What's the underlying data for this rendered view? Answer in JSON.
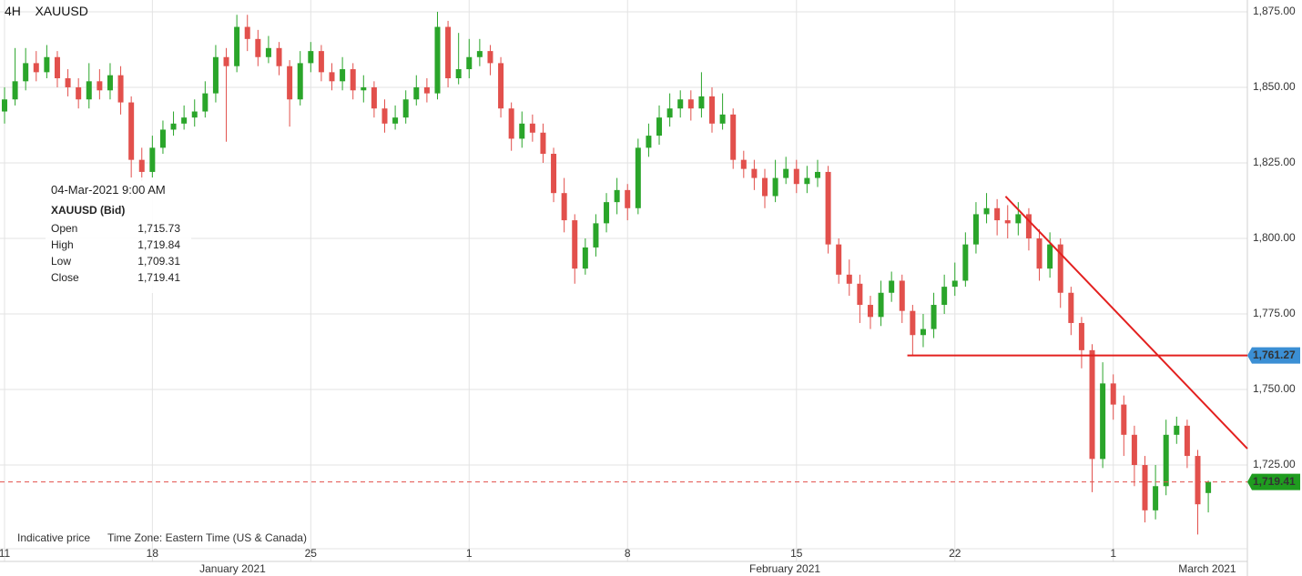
{
  "header": {
    "period": "4H",
    "symbol": "XAUUSD"
  },
  "footer": {
    "note": "Indicative price",
    "timezone": "Time Zone: Eastern Time (US & Canada)"
  },
  "tooltip": {
    "time": "04-Mar-2021 9:00 AM",
    "symbol": "XAUUSD (Bid)",
    "rows": [
      {
        "label": "Open",
        "value": "1,715.73"
      },
      {
        "label": "High",
        "value": "1,719.84"
      },
      {
        "label": "Low",
        "value": "1,709.31"
      },
      {
        "label": "Close",
        "value": "1,719.41"
      }
    ]
  },
  "chart_data": {
    "type": "candlestick",
    "up_color": "#2aa52a",
    "down_color": "#e2504c",
    "grid": true,
    "xlim": [
      -0.43,
      117.7
    ],
    "ylim": [
      1697.3,
      1878.9
    ],
    "xticks": [
      {
        "value": 0,
        "label": "11"
      },
      {
        "value": 14,
        "label": "18"
      },
      {
        "value": 29,
        "label": "25"
      },
      {
        "value": 44,
        "label": "1"
      },
      {
        "value": 59,
        "label": "8"
      },
      {
        "value": 75,
        "label": "15"
      },
      {
        "value": 90,
        "label": "22"
      },
      {
        "value": 105,
        "label": "1"
      }
    ],
    "months": [
      {
        "value": 21.6,
        "label": "January 2021"
      },
      {
        "value": 73.9,
        "label": "February 2021"
      },
      {
        "value": 113.9,
        "label": "March 2021"
      }
    ],
    "yticks": [
      {
        "value": 1725,
        "label": "1,725.00"
      },
      {
        "value": 1750,
        "label": "1,750.00"
      },
      {
        "value": 1775,
        "label": "1,775.00"
      },
      {
        "value": 1800,
        "label": "1,800.00"
      },
      {
        "value": 1825,
        "label": "1,825.00"
      },
      {
        "value": 1850,
        "label": "1,850.00"
      },
      {
        "value": 1875,
        "label": "1,875.00"
      }
    ],
    "x": [
      0,
      1,
      2,
      3,
      4,
      5,
      6,
      7,
      8,
      9,
      10,
      11,
      12,
      13,
      14,
      15,
      16,
      17,
      18,
      19,
      20,
      21,
      22,
      23,
      24,
      25,
      26,
      27,
      28,
      29,
      30,
      31,
      32,
      33,
      34,
      35,
      36,
      37,
      38,
      39,
      40,
      41,
      42,
      43,
      44,
      45,
      46,
      47,
      48,
      49,
      50,
      51,
      52,
      53,
      54,
      55,
      56,
      57,
      58,
      59,
      60,
      61,
      62,
      63,
      64,
      65,
      66,
      67,
      68,
      69,
      70,
      71,
      72,
      73,
      74,
      75,
      76,
      77,
      78,
      79,
      80,
      81,
      82,
      83,
      84,
      85,
      86,
      87,
      88,
      89,
      90,
      91,
      92,
      93,
      94,
      95,
      96,
      97,
      98,
      99,
      100,
      101,
      102,
      103,
      104,
      105,
      106,
      107,
      108,
      109,
      110,
      111,
      112,
      113,
      114
    ],
    "open": [
      1842,
      1846,
      1852,
      1858,
      1855,
      1860,
      1853,
      1850,
      1846,
      1852,
      1849,
      1854,
      1845,
      1826,
      1822,
      1830,
      1836,
      1838,
      1840,
      1842,
      1848,
      1860,
      1857,
      1870,
      1866,
      1860,
      1863,
      1857,
      1846,
      1858,
      1862,
      1855,
      1852,
      1856,
      1849,
      1850,
      1843,
      1838,
      1840,
      1846,
      1850,
      1848,
      1870,
      1853,
      1856,
      1860,
      1862,
      1858,
      1843,
      1833,
      1838,
      1835,
      1828,
      1815,
      1806,
      1790,
      1797,
      1805,
      1812,
      1816,
      1810,
      1830,
      1834,
      1840,
      1843,
      1846,
      1843,
      1847,
      1838,
      1841,
      1826,
      1823,
      1820,
      1814,
      1820,
      1823,
      1818,
      1820,
      1822,
      1798,
      1788,
      1785,
      1778,
      1774,
      1782,
      1786,
      1776,
      1768,
      1770,
      1778,
      1784,
      1786,
      1798,
      1808,
      1810,
      1806,
      1805,
      1808,
      1800,
      1790,
      1798,
      1782,
      1772,
      1763,
      1727,
      1752,
      1745,
      1735,
      1725,
      1710,
      1718,
      1735,
      1738,
      1728,
      1715.73
    ],
    "high": [
      1850,
      1863,
      1863,
      1862,
      1864,
      1862,
      1856,
      1853,
      1858,
      1856,
      1858,
      1857,
      1847,
      1830,
      1834,
      1839,
      1842,
      1844,
      1846,
      1852,
      1864,
      1863,
      1874,
      1874,
      1869,
      1867,
      1865,
      1859,
      1862,
      1865,
      1864,
      1858,
      1860,
      1858,
      1854,
      1852,
      1846,
      1844,
      1849,
      1854,
      1853,
      1875,
      1872,
      1868,
      1866,
      1866,
      1864,
      1860,
      1845,
      1842,
      1841,
      1838,
      1830,
      1820,
      1808,
      1800,
      1808,
      1815,
      1820,
      1818,
      1833,
      1838,
      1844,
      1848,
      1849,
      1849,
      1855,
      1850,
      1848,
      1843,
      1829,
      1826,
      1823,
      1826,
      1827,
      1826,
      1824,
      1826,
      1824,
      1800,
      1793,
      1788,
      1781,
      1786,
      1789,
      1788,
      1778,
      1775,
      1782,
      1788,
      1792,
      1802,
      1812,
      1815,
      1813,
      1811,
      1812,
      1810,
      1803,
      1802,
      1800,
      1784,
      1774,
      1765,
      1759,
      1755,
      1748,
      1738,
      1728,
      1725,
      1740,
      1741,
      1740,
      1730,
      1719.84
    ],
    "low": [
      1838,
      1844,
      1849,
      1852,
      1853,
      1850,
      1847,
      1843,
      1843,
      1846,
      1846,
      1841,
      1820,
      1819,
      1820,
      1828,
      1834,
      1836,
      1837,
      1840,
      1845,
      1832,
      1855,
      1862,
      1857,
      1858,
      1854,
      1837,
      1844,
      1855,
      1852,
      1849,
      1849,
      1846,
      1845,
      1840,
      1835,
      1836,
      1838,
      1844,
      1845,
      1846,
      1850,
      1851,
      1853,
      1857,
      1854,
      1840,
      1829,
      1830,
      1832,
      1825,
      1812,
      1802,
      1785,
      1788,
      1794,
      1802,
      1808,
      1806,
      1808,
      1827,
      1831,
      1837,
      1840,
      1839,
      1840,
      1835,
      1836,
      1823,
      1820,
      1816,
      1810,
      1812,
      1818,
      1815,
      1815,
      1817,
      1795,
      1785,
      1781,
      1772,
      1770,
      1771,
      1779,
      1772,
      1761,
      1764,
      1767,
      1775,
      1781,
      1784,
      1795,
      1805,
      1801,
      1800,
      1801,
      1796,
      1786,
      1787,
      1777,
      1768,
      1757,
      1716,
      1724,
      1740,
      1728,
      1718,
      1706,
      1707,
      1715,
      1732,
      1724,
      1702,
      1709.31
    ],
    "close": [
      1846,
      1852,
      1858,
      1855,
      1860,
      1853,
      1850,
      1846,
      1852,
      1849,
      1854,
      1845,
      1826,
      1822,
      1830,
      1836,
      1838,
      1840,
      1842,
      1848,
      1860,
      1857,
      1870,
      1866,
      1860,
      1863,
      1857,
      1846,
      1858,
      1862,
      1855,
      1852,
      1856,
      1849,
      1850,
      1843,
      1838,
      1840,
      1846,
      1850,
      1848,
      1870,
      1853,
      1856,
      1860,
      1862,
      1858,
      1843,
      1833,
      1838,
      1835,
      1828,
      1815,
      1806,
      1790,
      1797,
      1805,
      1812,
      1816,
      1810,
      1830,
      1834,
      1840,
      1843,
      1846,
      1843,
      1847,
      1838,
      1841,
      1826,
      1823,
      1820,
      1814,
      1820,
      1823,
      1818,
      1820,
      1822,
      1798,
      1788,
      1785,
      1778,
      1774,
      1782,
      1786,
      1776,
      1768,
      1770,
      1778,
      1784,
      1786,
      1798,
      1808,
      1810,
      1806,
      1805,
      1808,
      1800,
      1790,
      1798,
      1782,
      1772,
      1763,
      1727,
      1752,
      1745,
      1735,
      1725,
      1710,
      1718,
      1735,
      1738,
      1728,
      1712,
      1719.41
    ],
    "lines": [
      {
        "x": [
          94.8,
          117.7
        ],
        "y": [
          1813.9,
          1730.4
        ],
        "color": "#e3201f"
      },
      {
        "x": [
          85.5,
          117.7
        ],
        "y": [
          1761.27,
          1761.27
        ],
        "color": "#e3201f"
      }
    ],
    "price_labels": [
      {
        "value": 1761.27,
        "label": "1,761.27",
        "color": "#3b8fd4"
      },
      {
        "value": 1719.41,
        "label": "1,719.41",
        "color": "#1f9c1f",
        "dashed": true
      }
    ]
  }
}
